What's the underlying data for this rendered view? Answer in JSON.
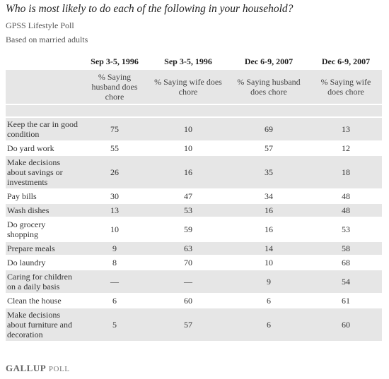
{
  "title": "Who is most likely to do each of the following in your household?",
  "source": "GPSS Lifestyle Poll",
  "note": "Based on married adults",
  "table": {
    "header": [
      "Sep 3-5, 1996",
      "Sep 3-5, 1996",
      "Dec 6-9, 2007",
      "Dec 6-9, 2007"
    ],
    "subheader": [
      "% Saying husband does chore",
      "% Saying wife does chore",
      "% Saying husband does chore",
      "% Saying wife does chore"
    ],
    "rows": [
      [
        "Keep the car in good condition",
        75,
        10,
        69,
        13
      ],
      [
        "Do yard work",
        55,
        10,
        57,
        12
      ],
      [
        "Make decisions about savings or investments",
        26,
        16,
        35,
        18
      ],
      [
        "Pay bills",
        30,
        47,
        34,
        48
      ],
      [
        "Wash dishes",
        13,
        53,
        16,
        48
      ],
      [
        "Do grocery shopping",
        10,
        59,
        16,
        53
      ],
      [
        "Prepare meals",
        9,
        63,
        14,
        58
      ],
      [
        "Do laundry",
        8,
        70,
        10,
        68
      ],
      [
        "Caring for children on a daily basis",
        "—",
        "—",
        9,
        54
      ],
      [
        "Clean the house",
        6,
        60,
        6,
        61
      ],
      [
        "Make decisions about furniture and decoration",
        5,
        57,
        6,
        60
      ]
    ]
  },
  "logo": {
    "brand": "GALLUP",
    "product": "POLL"
  }
}
